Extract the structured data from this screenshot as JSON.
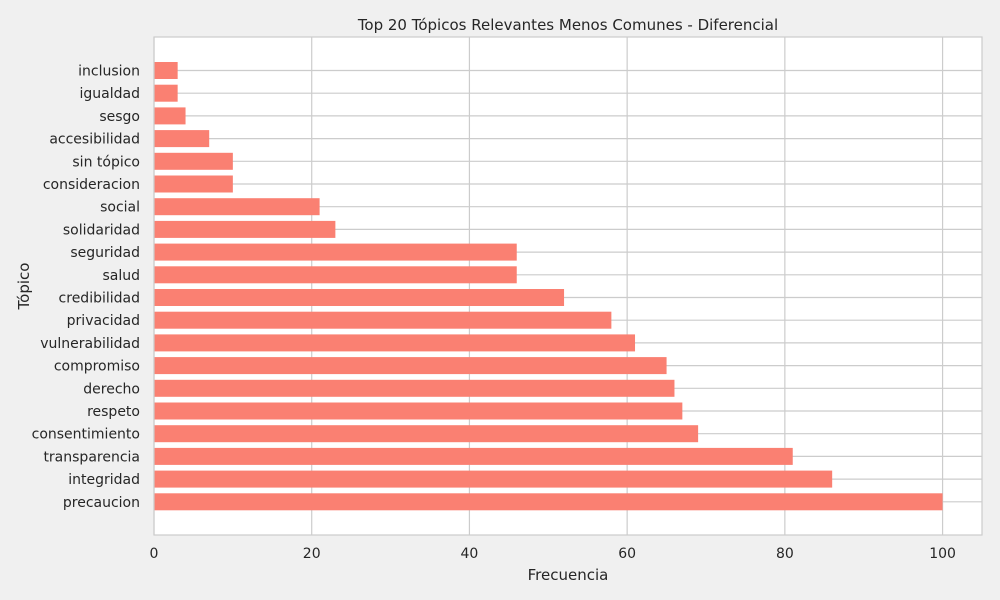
{
  "chart_data": {
    "type": "bar",
    "orientation": "horizontal",
    "title": "Top 20 Tópicos Relevantes Menos Comunes - Diferencial",
    "xlabel": "Frecuencia",
    "ylabel": "Tópico",
    "categories": [
      "inclusion",
      "igualdad",
      "sesgo",
      "accesibilidad",
      "sin tópico",
      "consideracion",
      "social",
      "solidaridad",
      "seguridad",
      "salud",
      "credibilidad",
      "privacidad",
      "vulnerabilidad",
      "compromiso",
      "derecho",
      "respeto",
      "consentimiento",
      "transparencia",
      "integridad",
      "precaucion"
    ],
    "values": [
      3,
      3,
      4,
      7,
      10,
      10,
      21,
      23,
      46,
      46,
      52,
      58,
      61,
      65,
      66,
      67,
      69,
      81,
      86,
      100
    ],
    "xlim": [
      0,
      105
    ],
    "xticks": [
      0,
      20,
      40,
      60,
      80,
      100
    ],
    "grid": true,
    "bar_color": "#fa8072",
    "background_color": "#ffffff",
    "grid_color": "#cccccc"
  }
}
